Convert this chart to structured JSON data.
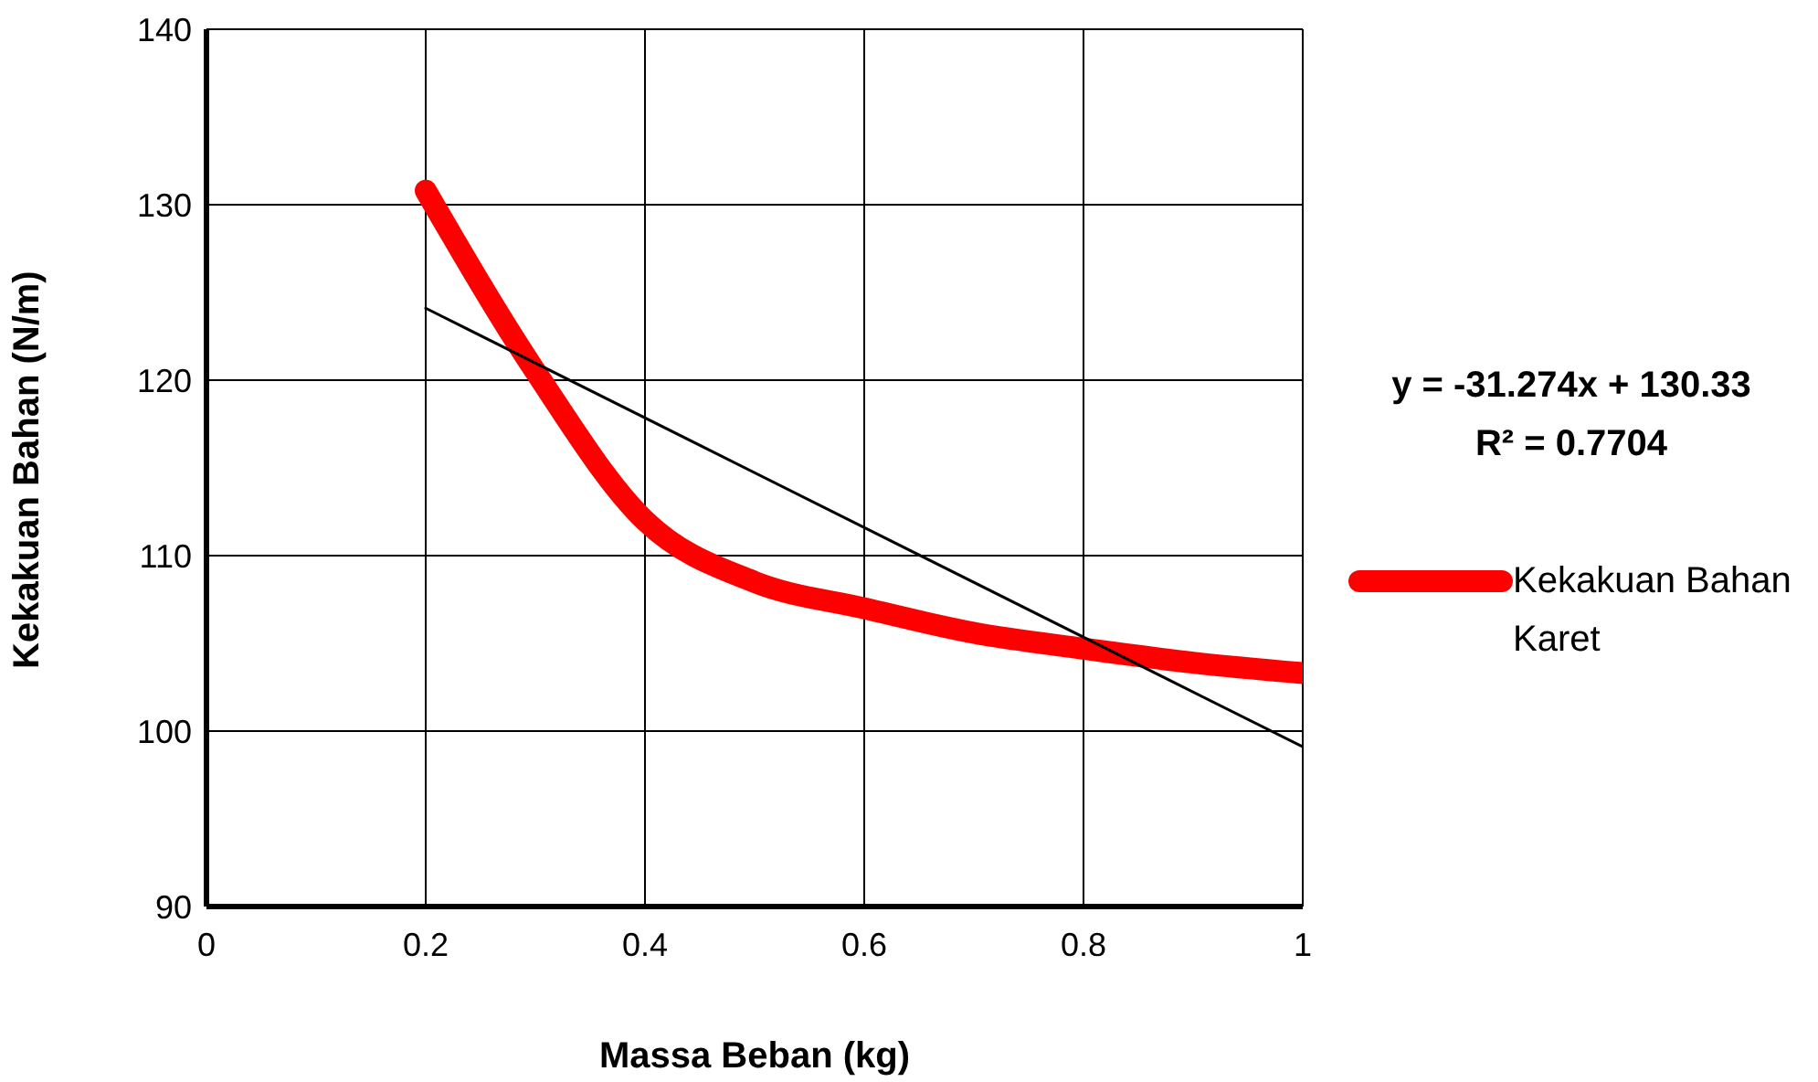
{
  "chart_data": {
    "type": "line",
    "xlabel": "Massa Beban (kg)",
    "ylabel": "Kekakuan Bahan (N/m)",
    "xlim": [
      0,
      1
    ],
    "xticks": [
      0,
      0.2,
      0.4,
      0.6,
      0.8,
      1
    ],
    "ylim": [
      90,
      140
    ],
    "yticks": [
      90,
      100,
      110,
      120,
      130,
      140
    ],
    "grid": true,
    "legend": "right",
    "marker": "none",
    "annotations": [
      "y = -31.274x + 130.33",
      "R² = 0.7704"
    ],
    "series": [
      {
        "name": "Kekakuan Bahan Karet",
        "color": "#ff0000",
        "x": [
          0.2,
          0.3,
          0.4,
          0.5,
          0.6,
          0.7,
          0.8,
          0.9,
          1
        ],
        "values": [
          130.8,
          120.5,
          112,
          108.5,
          107,
          105.6,
          104.7,
          103.9,
          103.3
        ]
      },
      {
        "type": "line",
        "color": "#000000",
        "x": [
          0.2,
          1
        ],
        "values": [
          124.1,
          99.1
        ]
      }
    ]
  }
}
